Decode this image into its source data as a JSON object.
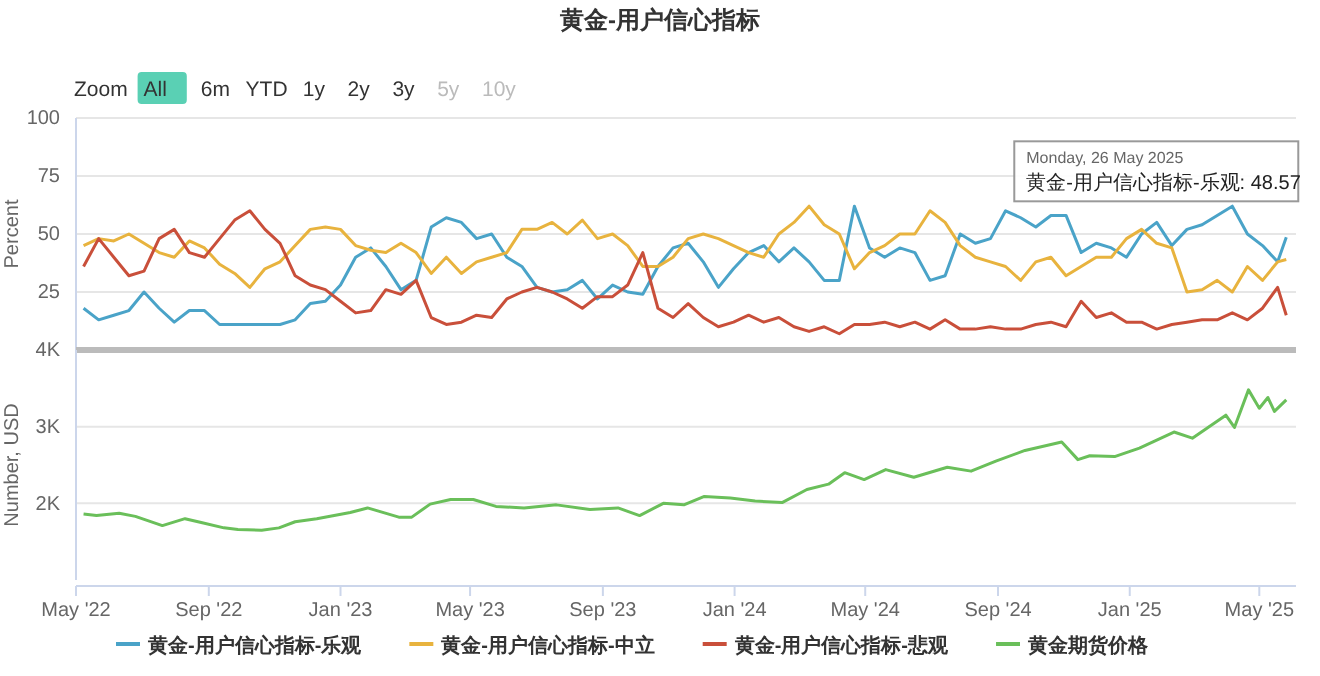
{
  "chart_data": [
    {
      "type": "line",
      "title": "黄金-用户信心指标",
      "ylabel": "Percent",
      "x": [
        "2022-05-08",
        "2022-05-22",
        "2022-06-05",
        "2022-06-19",
        "2022-07-03",
        "2022-07-17",
        "2022-07-31",
        "2022-08-14",
        "2022-08-28",
        "2022-09-11",
        "2022-09-25",
        "2022-10-09",
        "2022-10-23",
        "2022-11-06",
        "2022-11-20",
        "2022-12-04",
        "2022-12-18",
        "2023-01-01",
        "2023-01-15",
        "2023-01-29",
        "2023-02-12",
        "2023-02-26",
        "2023-03-12",
        "2023-03-26",
        "2023-04-09",
        "2023-04-23",
        "2023-05-07",
        "2023-05-21",
        "2023-06-04",
        "2023-06-18",
        "2023-07-02",
        "2023-07-16",
        "2023-07-30",
        "2023-08-13",
        "2023-08-27",
        "2023-09-10",
        "2023-09-24",
        "2023-10-08",
        "2023-10-22",
        "2023-11-05",
        "2023-11-19",
        "2023-12-03",
        "2023-12-17",
        "2023-12-31",
        "2024-01-14",
        "2024-01-28",
        "2024-02-11",
        "2024-02-25",
        "2024-03-10",
        "2024-03-24",
        "2024-04-07",
        "2024-04-21",
        "2024-05-05",
        "2024-05-19",
        "2024-06-02",
        "2024-06-16",
        "2024-06-30",
        "2024-07-14",
        "2024-07-28",
        "2024-08-11",
        "2024-08-25",
        "2024-09-08",
        "2024-09-22",
        "2024-10-06",
        "2024-10-20",
        "2024-11-03",
        "2024-11-17",
        "2024-12-01",
        "2024-12-15",
        "2024-12-29",
        "2025-01-12",
        "2025-01-26",
        "2025-02-09",
        "2025-02-23",
        "2025-03-09",
        "2025-03-23",
        "2025-04-06",
        "2025-04-20",
        "2025-05-04",
        "2025-05-18",
        "2025-05-26"
      ],
      "xlim": [
        "2022-05-01",
        "2025-06-04"
      ],
      "ylim": [
        0,
        100
      ],
      "yticks": [
        25,
        50,
        75,
        100
      ],
      "grid": "y",
      "tick_labels": "y",
      "series": [
        {
          "name": "黄金-用户信心指标-乐观",
          "color": "#4aa3c8",
          "values": [
            18,
            13,
            15,
            17,
            25,
            18,
            12,
            17,
            17,
            11,
            11,
            11,
            11,
            11,
            13,
            20,
            21,
            28,
            40,
            44,
            36,
            26,
            30,
            53,
            57,
            55,
            48,
            50,
            40,
            36,
            27,
            25,
            26,
            30,
            22,
            28,
            25,
            24,
            36,
            44,
            46,
            38,
            27,
            35,
            42,
            45,
            38,
            44,
            38,
            30,
            30,
            62,
            44,
            40,
            44,
            42,
            30,
            32,
            50,
            46,
            48,
            60,
            57,
            53,
            58,
            58,
            42,
            46,
            44,
            40,
            50,
            55,
            45,
            52,
            54,
            58,
            62,
            50,
            45,
            38,
            48.57
          ]
        },
        {
          "name": "黄金-用户信心指标-中立",
          "color": "#e8b33e",
          "values": [
            45,
            48,
            47,
            50,
            46,
            42,
            40,
            47,
            44,
            37,
            33,
            27,
            35,
            38,
            45,
            52,
            53,
            52,
            45,
            43,
            42,
            46,
            42,
            33,
            40,
            33,
            38,
            40,
            42,
            52,
            52,
            55,
            50,
            56,
            48,
            50,
            45,
            36,
            36,
            40,
            48,
            50,
            48,
            45,
            42,
            40,
            50,
            55,
            62,
            54,
            50,
            35,
            42,
            45,
            50,
            50,
            60,
            55,
            45,
            40,
            38,
            36,
            30,
            38,
            40,
            32,
            36,
            40,
            40,
            48,
            52,
            46,
            44,
            25,
            26,
            30,
            25,
            36,
            30,
            38,
            39
          ]
        },
        {
          "name": "黄金-用户信心指标-悲观",
          "color": "#c94f3a",
          "values": [
            36,
            48,
            40,
            32,
            34,
            48,
            52,
            42,
            40,
            48,
            56,
            60,
            52,
            46,
            32,
            28,
            26,
            21,
            16,
            17,
            26,
            24,
            30,
            14,
            11,
            12,
            15,
            14,
            22,
            25,
            27,
            25,
            22,
            18,
            23,
            23,
            28,
            42,
            18,
            14,
            20,
            14,
            10,
            12,
            15,
            12,
            14,
            10,
            8,
            10,
            7,
            11,
            11,
            12,
            10,
            12,
            9,
            13,
            9,
            9,
            10,
            9,
            9,
            11,
            12,
            10,
            21,
            14,
            16,
            12,
            12,
            9,
            11,
            12,
            13,
            13,
            16,
            13,
            18,
            27,
            15
          ]
        }
      ],
      "annotations": [
        "Zoom",
        "All",
        "6m",
        "YTD",
        "1y",
        "2y",
        "3y",
        "5y",
        "10y",
        {
          "text": "Monday, 26 May 2025\n黄金-用户信心指标-乐观: 48.57",
          "x": "2025-05-26",
          "y": 48.57
        }
      ]
    },
    {
      "type": "line",
      "ylabel": "Number, USD",
      "legend": "bottom",
      "grid": "y",
      "xlim": [
        "2022-05-01",
        "2025-06-04"
      ],
      "ylim": [
        1000,
        4000
      ],
      "xticks": [
        {
          "value": "2022-05-01",
          "label": "May '22"
        },
        {
          "value": "2022-09-01",
          "label": "Sep '22"
        },
        {
          "value": "2023-01-01",
          "label": "Jan '23"
        },
        {
          "value": "2023-05-01",
          "label": "May '23"
        },
        {
          "value": "2023-09-01",
          "label": "Sep '23"
        },
        {
          "value": "2024-01-01",
          "label": "Jan '24"
        },
        {
          "value": "2024-05-01",
          "label": "May '24"
        },
        {
          "value": "2024-09-01",
          "label": "Sep '24"
        },
        {
          "value": "2025-01-01",
          "label": "Jan '25"
        },
        {
          "value": "2025-05-01",
          "label": "May '25"
        }
      ],
      "yticks": [
        {
          "value": 2000,
          "label": "2K"
        },
        {
          "value": 3000,
          "label": "3K"
        },
        {
          "value": 4000,
          "label": "4K"
        }
      ],
      "series": [
        {
          "name": "黄金期货价格",
          "color": "#6abf5a",
          "x": [
            "2022-05-08",
            "2022-05-20",
            "2022-06-10",
            "2022-06-25",
            "2022-07-20",
            "2022-08-10",
            "2022-08-25",
            "2022-09-15",
            "2022-09-28",
            "2022-10-20",
            "2022-11-05",
            "2022-11-20",
            "2022-12-10",
            "2023-01-10",
            "2023-01-26",
            "2023-02-24",
            "2023-03-08",
            "2023-03-25",
            "2023-04-13",
            "2023-05-04",
            "2023-05-25",
            "2023-06-20",
            "2023-07-20",
            "2023-08-20",
            "2023-09-15",
            "2023-10-05",
            "2023-10-27",
            "2023-11-15",
            "2023-12-04",
            "2023-12-28",
            "2024-01-20",
            "2024-02-14",
            "2024-03-08",
            "2024-03-28",
            "2024-04-12",
            "2024-04-30",
            "2024-05-20",
            "2024-06-15",
            "2024-07-16",
            "2024-08-07",
            "2024-08-30",
            "2024-09-26",
            "2024-10-30",
            "2024-11-14",
            "2024-11-25",
            "2024-12-18",
            "2025-01-10",
            "2025-02-11",
            "2025-02-28",
            "2025-03-31",
            "2025-04-08",
            "2025-04-21",
            "2025-05-01",
            "2025-05-09",
            "2025-05-15",
            "2025-05-26"
          ],
          "values": [
            1860,
            1840,
            1870,
            1830,
            1710,
            1800,
            1750,
            1680,
            1660,
            1650,
            1680,
            1760,
            1800,
            1880,
            1940,
            1820,
            1820,
            1990,
            2050,
            2050,
            1960,
            1940,
            1980,
            1920,
            1940,
            1840,
            2000,
            1980,
            2090,
            2070,
            2030,
            2010,
            2180,
            2250,
            2400,
            2310,
            2440,
            2340,
            2470,
            2420,
            2550,
            2690,
            2800,
            2570,
            2620,
            2610,
            2720,
            2930,
            2850,
            3150,
            2990,
            3480,
            3240,
            3380,
            3200,
            3350
          ]
        }
      ]
    }
  ]
}
